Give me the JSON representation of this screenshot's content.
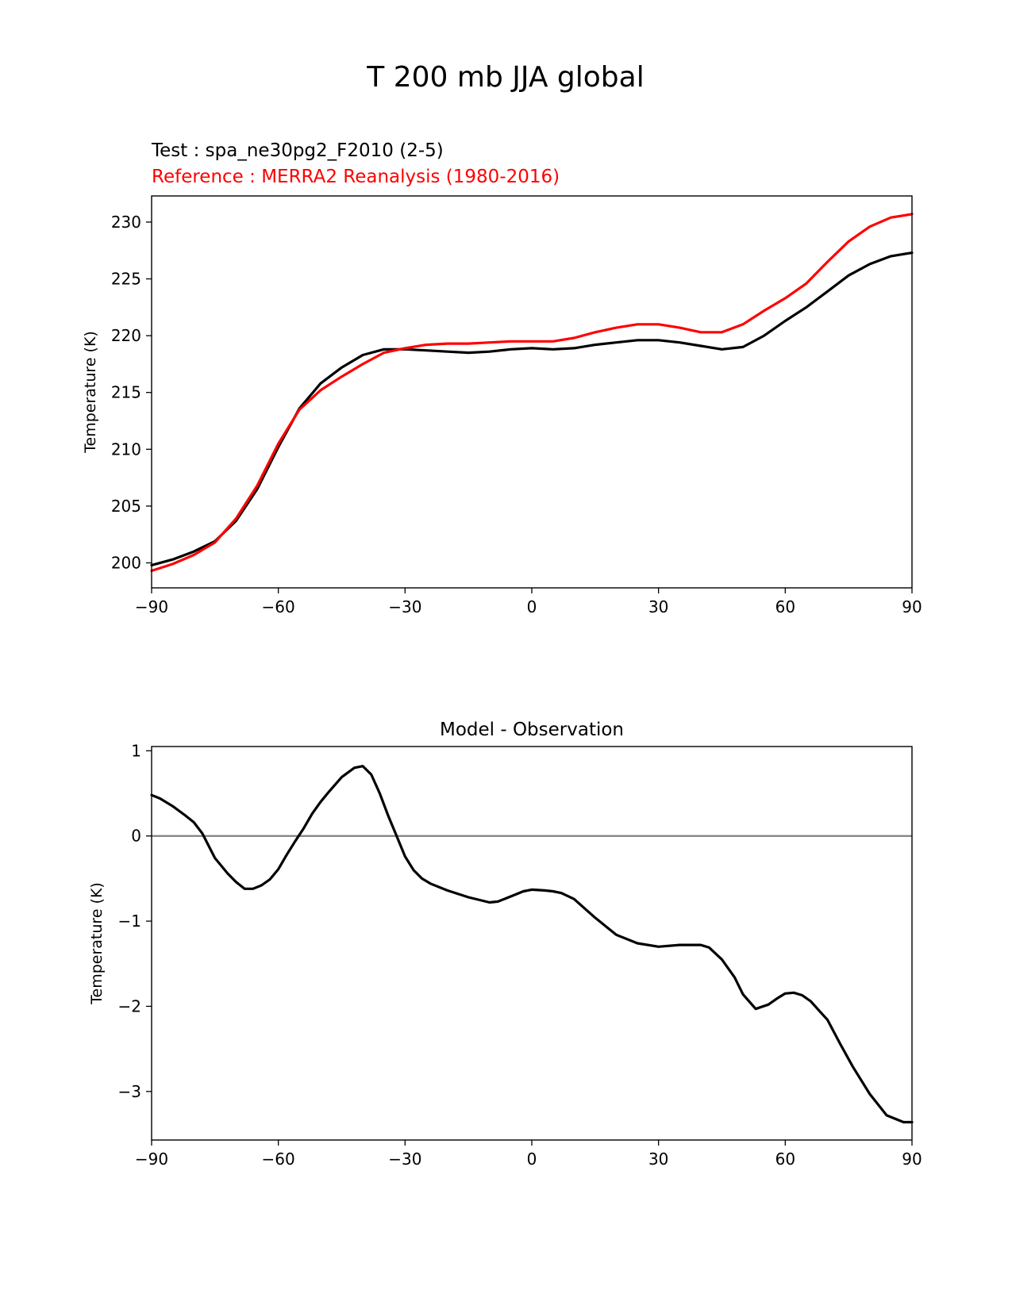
{
  "figure": {
    "title": "T 200 mb JJA global"
  },
  "chart_data": [
    {
      "type": "line",
      "test_label": "Test : spa_ne30pg2_F2010 (2-5)",
      "reference_label": "Reference : MERRA2 Reanalysis (1980-2016)",
      "title": "",
      "xlabel": "",
      "ylabel": "Temperature (K)",
      "xlim": [
        -90,
        90
      ],
      "ylim": [
        197.8,
        232.3
      ],
      "xticks": [
        -90,
        -60,
        -30,
        0,
        30,
        60,
        90
      ],
      "xtick_labels": [
        "−90",
        "−60",
        "−30",
        "0",
        "30",
        "60",
        "90"
      ],
      "yticks": [
        200,
        205,
        210,
        215,
        220,
        225,
        230
      ],
      "ytick_labels": [
        "200",
        "205",
        "210",
        "215",
        "220",
        "225",
        "230"
      ],
      "grid": false,
      "series": [
        {
          "color": "#000000",
          "x": [
            -90,
            -85,
            -80,
            -75,
            -70,
            -65,
            -60,
            -55,
            -50,
            -45,
            -40,
            -35,
            -30,
            -25,
            -20,
            -15,
            -10,
            -5,
            0,
            5,
            10,
            15,
            20,
            25,
            30,
            35,
            40,
            45,
            50,
            55,
            60,
            65,
            70,
            75,
            80,
            85,
            90
          ],
          "y": [
            199.8,
            200.3,
            201.0,
            201.9,
            203.7,
            206.5,
            210.2,
            213.6,
            215.8,
            217.2,
            218.3,
            218.8,
            218.8,
            218.7,
            218.6,
            218.5,
            218.6,
            218.8,
            218.9,
            218.8,
            218.9,
            219.2,
            219.4,
            219.6,
            219.6,
            219.4,
            219.1,
            218.8,
            219.0,
            220.0,
            221.3,
            222.5,
            223.9,
            225.3,
            226.3,
            227.0,
            227.3
          ]
        },
        {
          "color": "#ff0000",
          "x": [
            -90,
            -85,
            -80,
            -75,
            -70,
            -65,
            -60,
            -55,
            -50,
            -45,
            -40,
            -35,
            -30,
            -25,
            -20,
            -15,
            -10,
            -5,
            0,
            5,
            10,
            15,
            20,
            25,
            30,
            35,
            40,
            45,
            50,
            55,
            60,
            65,
            70,
            75,
            80,
            85,
            90
          ],
          "y": [
            199.3,
            199.9,
            200.7,
            201.8,
            203.9,
            206.8,
            210.5,
            213.5,
            215.2,
            216.4,
            217.5,
            218.5,
            218.9,
            219.2,
            219.3,
            219.3,
            219.4,
            219.5,
            219.5,
            219.5,
            219.8,
            220.3,
            220.7,
            221.0,
            221.0,
            220.7,
            220.3,
            220.3,
            221.0,
            222.2,
            223.3,
            224.6,
            226.5,
            228.3,
            229.6,
            230.4,
            230.7
          ]
        }
      ]
    },
    {
      "type": "line",
      "title": "Model - Observation",
      "xlabel": "",
      "ylabel": "Temperature (K)",
      "xlim": [
        -90,
        90
      ],
      "ylim": [
        -3.57,
        1.05
      ],
      "xticks": [
        -90,
        -60,
        -30,
        0,
        30,
        60,
        90
      ],
      "xtick_labels": [
        "−90",
        "−60",
        "−30",
        "0",
        "30",
        "60",
        "90"
      ],
      "yticks": [
        1,
        0,
        -1,
        -2,
        -3
      ],
      "ytick_labels": [
        "1",
        "0",
        "−1",
        "−2",
        "−3"
      ],
      "grid": false,
      "zero_line": {
        "y": 0,
        "color": "#808080"
      },
      "series": [
        {
          "color": "#000000",
          "x": [
            -90,
            -88,
            -85,
            -82,
            -80,
            -78,
            -75,
            -72,
            -70,
            -68,
            -66,
            -64,
            -62,
            -60,
            -58,
            -56,
            -54,
            -52,
            -50,
            -48,
            -45,
            -42,
            -40,
            -38,
            -36,
            -34,
            -32,
            -30,
            -28,
            -26,
            -24,
            -20,
            -15,
            -10,
            -8,
            -5,
            -2,
            0,
            3,
            5,
            7,
            10,
            15,
            20,
            25,
            30,
            35,
            40,
            42,
            45,
            48,
            50,
            53,
            56,
            58,
            60,
            62,
            64,
            66,
            68,
            70,
            73,
            76,
            80,
            84,
            88,
            90
          ],
          "y": [
            0.48,
            0.44,
            0.35,
            0.24,
            0.16,
            0.03,
            -0.26,
            -0.44,
            -0.54,
            -0.62,
            -0.62,
            -0.58,
            -0.51,
            -0.39,
            -0.22,
            -0.06,
            0.09,
            0.26,
            0.4,
            0.52,
            0.69,
            0.8,
            0.82,
            0.72,
            0.5,
            0.24,
            0.0,
            -0.24,
            -0.4,
            -0.5,
            -0.56,
            -0.64,
            -0.72,
            -0.78,
            -0.77,
            -0.71,
            -0.65,
            -0.63,
            -0.64,
            -0.65,
            -0.67,
            -0.74,
            -0.96,
            -1.16,
            -1.26,
            -1.3,
            -1.28,
            -1.28,
            -1.31,
            -1.45,
            -1.66,
            -1.86,
            -2.03,
            -1.98,
            -1.91,
            -1.85,
            -1.84,
            -1.87,
            -1.94,
            -2.05,
            -2.16,
            -2.44,
            -2.71,
            -3.03,
            -3.28,
            -3.36,
            -3.36
          ]
        }
      ]
    }
  ]
}
